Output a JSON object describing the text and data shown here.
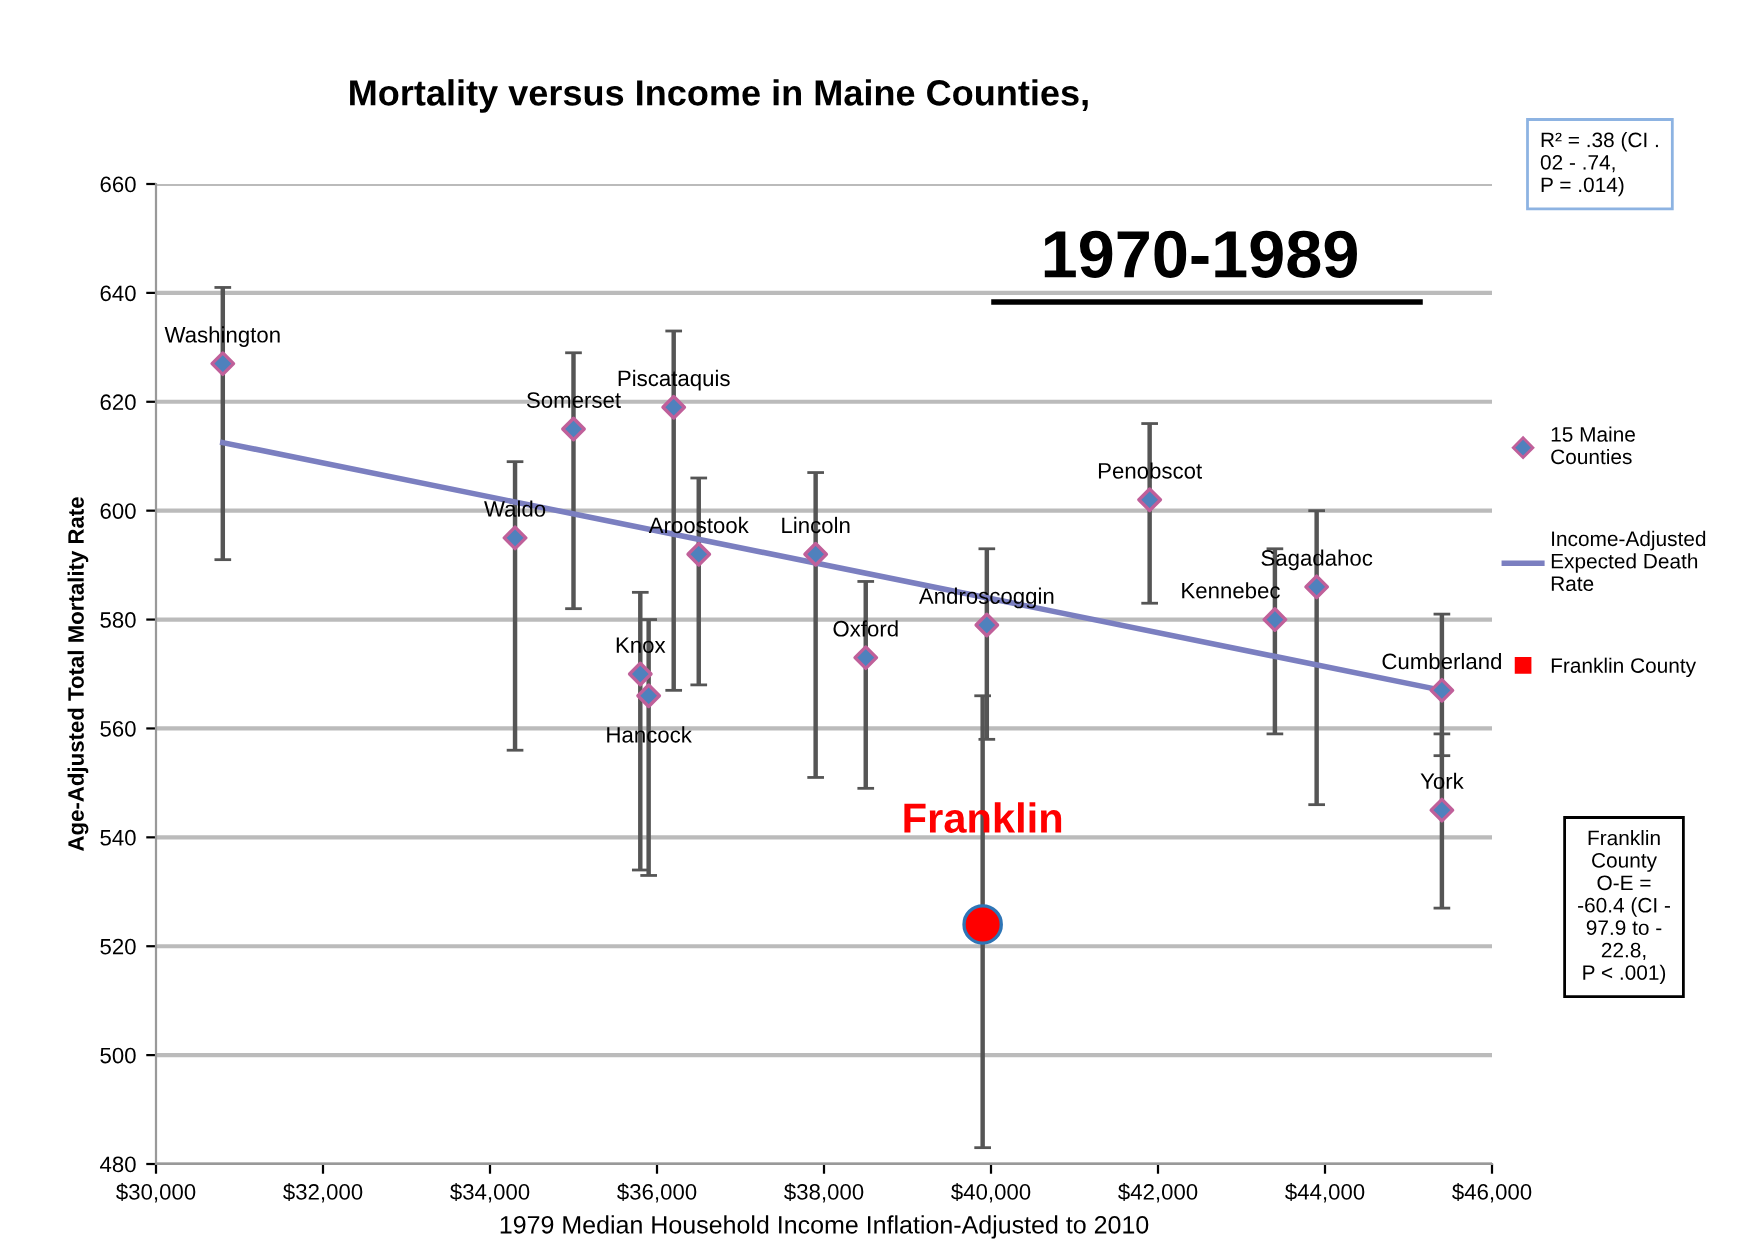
{
  "chart_data": {
    "type": "scatter",
    "title": "Mortality versus Income in Maine Counties,",
    "subtitle": "1970-1989",
    "xlabel": "1979 Median Household Income Inflation-Adjusted to 2010",
    "ylabel": "Age-Adjusted Total Mortality Rate",
    "xlim": [
      30000,
      46000
    ],
    "xticks": [
      {
        "value": 30000,
        "label": "$30,000"
      },
      {
        "value": 32000,
        "label": "$32,000"
      },
      {
        "value": 34000,
        "label": "$34,000"
      },
      {
        "value": 36000,
        "label": "$36,000"
      },
      {
        "value": 38000,
        "label": "$38,000"
      },
      {
        "value": 40000,
        "label": "$40,000"
      },
      {
        "value": 42000,
        "label": "$42,000"
      },
      {
        "value": 44000,
        "label": "$44,000"
      },
      {
        "value": 46000,
        "label": "$46,000"
      }
    ],
    "ylim": [
      480,
      660
    ],
    "yticks": [
      480,
      500,
      520,
      540,
      560,
      580,
      600,
      620,
      640,
      660
    ],
    "grid": "y",
    "legend": "right",
    "series": [
      {
        "name": "15 Maine Counties",
        "marker": "diamond",
        "color": "#4f81bd",
        "x": [
          30800,
          34300,
          35000,
          35800,
          35900,
          36200,
          36500,
          37900,
          38500,
          39950,
          41900,
          43400,
          43900,
          45400,
          45400
        ],
        "values": [
          627,
          595,
          615,
          570,
          566,
          619,
          592,
          592,
          573,
          579,
          602,
          580,
          586,
          567,
          545
        ],
        "errors": [
          [
            591,
            641
          ],
          [
            556,
            609
          ],
          [
            582,
            629
          ],
          [
            534,
            585
          ],
          [
            533,
            580
          ],
          [
            567,
            633
          ],
          [
            568,
            606
          ],
          [
            551,
            607
          ],
          [
            549,
            587
          ],
          [
            558,
            593
          ],
          [
            583,
            616
          ],
          [
            559,
            593
          ],
          [
            546,
            600
          ],
          [
            555,
            581
          ],
          [
            527,
            559
          ]
        ]
      },
      {
        "name": "Income-Adjusted Expected Death Rate",
        "type": "line",
        "color": "#7b7fc0",
        "x": [
          30800,
          45400
        ],
        "values": [
          612.5,
          567
        ]
      },
      {
        "name": "Franklin County",
        "marker": "circle",
        "color": "#ff0000",
        "x": [
          39900
        ],
        "values": [
          524
        ],
        "errors": [
          [
            483,
            566
          ]
        ]
      }
    ],
    "annotations": [
      {
        "text": "Washington",
        "x": 30800,
        "y": 627
      },
      {
        "text": "Waldo",
        "x": 34300,
        "y": 595
      },
      {
        "text": "Somerset",
        "x": 35000,
        "y": 615
      },
      {
        "text": "Knox",
        "x": 35800,
        "y": 570
      },
      {
        "text": "Hancock",
        "x": 35900,
        "y": 566
      },
      {
        "text": "Piscataquis",
        "x": 36200,
        "y": 619
      },
      {
        "text": "Aroostook",
        "x": 36500,
        "y": 592
      },
      {
        "text": "Lincoln",
        "x": 37900,
        "y": 592
      },
      {
        "text": "Oxford",
        "x": 38500,
        "y": 573
      },
      {
        "text": "Androscoggin",
        "x": 39950,
        "y": 579
      },
      {
        "text": "Penobscot",
        "x": 41900,
        "y": 602
      },
      {
        "text": "Kennebec",
        "x": 43400,
        "y": 580
      },
      {
        "text": "Sagadahoc",
        "x": 43900,
        "y": 586
      },
      {
        "text": "Cumberland",
        "x": 45400,
        "y": 567
      },
      {
        "text": "York",
        "x": 45400,
        "y": 545
      },
      {
        "text": "Franklin",
        "x": 39900,
        "y": 524
      },
      "R² = .38 (CI .\n02 - .74,\nP = .014)",
      "Franklin\nCounty\nO-E =\n-60.4 (CI -\n97.9 to -\n22.8,\nP < .001)"
    ]
  }
}
